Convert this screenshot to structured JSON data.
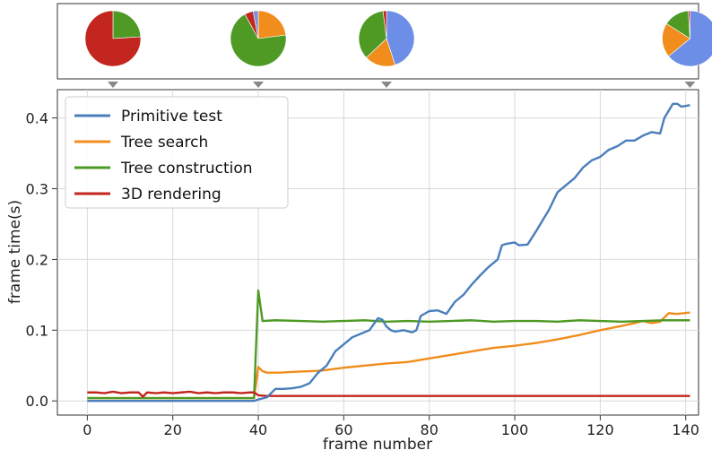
{
  "chart_data": {
    "type": "line",
    "xlabel": "frame number",
    "ylabel": "frame time(s)",
    "xlim": [
      -7,
      143
    ],
    "ylim": [
      -0.02,
      0.44
    ],
    "xticks": [
      0,
      20,
      40,
      60,
      80,
      100,
      120,
      140
    ],
    "yticks": [
      0.0,
      0.1,
      0.2,
      0.3,
      0.4
    ],
    "grid": true,
    "legend": {
      "location": "upper left"
    },
    "series": [
      {
        "name": "Primitive test",
        "color": "#4a7fbc",
        "points": [
          [
            0,
            0.0
          ],
          [
            39,
            0.0
          ],
          [
            40,
            0.002
          ],
          [
            42,
            0.005
          ],
          [
            44,
            0.017
          ],
          [
            46,
            0.017
          ],
          [
            48,
            0.018
          ],
          [
            50,
            0.02
          ],
          [
            52,
            0.025
          ],
          [
            54,
            0.04
          ],
          [
            56,
            0.05
          ],
          [
            58,
            0.07
          ],
          [
            60,
            0.08
          ],
          [
            62,
            0.09
          ],
          [
            64,
            0.095
          ],
          [
            66,
            0.1
          ],
          [
            68,
            0.117
          ],
          [
            69,
            0.115
          ],
          [
            70,
            0.105
          ],
          [
            71,
            0.1
          ],
          [
            72,
            0.098
          ],
          [
            74,
            0.1
          ],
          [
            76,
            0.097
          ],
          [
            77,
            0.1
          ],
          [
            78,
            0.12
          ],
          [
            80,
            0.127
          ],
          [
            82,
            0.128
          ],
          [
            84,
            0.123
          ],
          [
            86,
            0.14
          ],
          [
            88,
            0.15
          ],
          [
            90,
            0.165
          ],
          [
            92,
            0.178
          ],
          [
            94,
            0.19
          ],
          [
            96,
            0.2
          ],
          [
            97,
            0.22
          ],
          [
            98,
            0.222
          ],
          [
            100,
            0.224
          ],
          [
            101,
            0.22
          ],
          [
            103,
            0.221
          ],
          [
            105,
            0.24
          ],
          [
            107,
            0.26
          ],
          [
            108,
            0.27
          ],
          [
            110,
            0.295
          ],
          [
            111,
            0.3
          ],
          [
            112,
            0.305
          ],
          [
            114,
            0.315
          ],
          [
            116,
            0.33
          ],
          [
            118,
            0.34
          ],
          [
            120,
            0.345
          ],
          [
            122,
            0.355
          ],
          [
            124,
            0.36
          ],
          [
            126,
            0.368
          ],
          [
            128,
            0.368
          ],
          [
            130,
            0.375
          ],
          [
            132,
            0.38
          ],
          [
            134,
            0.378
          ],
          [
            135,
            0.4
          ],
          [
            137,
            0.42
          ],
          [
            138,
            0.42
          ],
          [
            139,
            0.416
          ],
          [
            141,
            0.418
          ]
        ]
      },
      {
        "name": "Tree search",
        "color": "#f08d1c",
        "points": [
          [
            0,
            0.004
          ],
          [
            39,
            0.004
          ],
          [
            40,
            0.048
          ],
          [
            41,
            0.042
          ],
          [
            42,
            0.04
          ],
          [
            45,
            0.04
          ],
          [
            48,
            0.041
          ],
          [
            52,
            0.042
          ],
          [
            55,
            0.043
          ],
          [
            60,
            0.047
          ],
          [
            65,
            0.05
          ],
          [
            70,
            0.053
          ],
          [
            75,
            0.055
          ],
          [
            80,
            0.06
          ],
          [
            85,
            0.065
          ],
          [
            90,
            0.07
          ],
          [
            95,
            0.075
          ],
          [
            100,
            0.078
          ],
          [
            105,
            0.082
          ],
          [
            110,
            0.087
          ],
          [
            115,
            0.093
          ],
          [
            120,
            0.1
          ],
          [
            125,
            0.106
          ],
          [
            128,
            0.11
          ],
          [
            130,
            0.113
          ],
          [
            132,
            0.11
          ],
          [
            134,
            0.112
          ],
          [
            136,
            0.124
          ],
          [
            138,
            0.123
          ],
          [
            141,
            0.125
          ]
        ]
      },
      {
        "name": "Tree construction",
        "color": "#4e9a24",
        "points": [
          [
            0,
            0.004
          ],
          [
            39,
            0.004
          ],
          [
            40,
            0.156
          ],
          [
            41,
            0.113
          ],
          [
            44,
            0.114
          ],
          [
            50,
            0.113
          ],
          [
            55,
            0.112
          ],
          [
            60,
            0.113
          ],
          [
            65,
            0.114
          ],
          [
            70,
            0.112
          ],
          [
            75,
            0.113
          ],
          [
            80,
            0.112
          ],
          [
            85,
            0.113
          ],
          [
            90,
            0.114
          ],
          [
            95,
            0.112
          ],
          [
            100,
            0.113
          ],
          [
            105,
            0.113
          ],
          [
            110,
            0.112
          ],
          [
            115,
            0.114
          ],
          [
            120,
            0.113
          ],
          [
            125,
            0.112
          ],
          [
            130,
            0.113
          ],
          [
            135,
            0.114
          ],
          [
            141,
            0.114
          ]
        ]
      },
      {
        "name": "3D rendering",
        "color": "#c3261f",
        "points": [
          [
            0,
            0.012
          ],
          [
            2,
            0.012
          ],
          [
            4,
            0.011
          ],
          [
            6,
            0.013
          ],
          [
            8,
            0.011
          ],
          [
            10,
            0.012
          ],
          [
            12,
            0.012
          ],
          [
            13,
            0.006
          ],
          [
            14,
            0.012
          ],
          [
            16,
            0.011
          ],
          [
            18,
            0.012
          ],
          [
            20,
            0.011
          ],
          [
            22,
            0.012
          ],
          [
            24,
            0.013
          ],
          [
            26,
            0.011
          ],
          [
            28,
            0.012
          ],
          [
            30,
            0.011
          ],
          [
            32,
            0.012
          ],
          [
            34,
            0.012
          ],
          [
            36,
            0.011
          ],
          [
            38,
            0.012
          ],
          [
            39,
            0.012
          ],
          [
            40,
            0.008
          ],
          [
            42,
            0.007
          ],
          [
            50,
            0.007
          ],
          [
            60,
            0.007
          ],
          [
            70,
            0.007
          ],
          [
            80,
            0.007
          ],
          [
            90,
            0.007
          ],
          [
            100,
            0.007
          ],
          [
            110,
            0.007
          ],
          [
            120,
            0.007
          ],
          [
            130,
            0.007
          ],
          [
            141,
            0.007
          ]
        ]
      }
    ],
    "pies": [
      {
        "frame": 6,
        "slices": [
          {
            "series": "Tree construction",
            "color": "#4e9a24",
            "value": 0.24
          },
          {
            "series": "3D rendering",
            "color": "#c3261f",
            "value": 0.76
          }
        ]
      },
      {
        "frame": 40,
        "slices": [
          {
            "series": "Tree search",
            "color": "#f08d1c",
            "value": 0.23
          },
          {
            "series": "Tree construction",
            "color": "#4e9a24",
            "value": 0.69
          },
          {
            "series": "3D rendering",
            "color": "#c3261f",
            "value": 0.05
          },
          {
            "series": "Primitive test",
            "color": "#7a90d8",
            "value": 0.03
          }
        ]
      },
      {
        "frame": 70,
        "slices": [
          {
            "series": "Primitive test",
            "color": "#6d8ee6",
            "value": 0.45
          },
          {
            "series": "Tree search",
            "color": "#f08d1c",
            "value": 0.18
          },
          {
            "series": "Tree construction",
            "color": "#4e9a24",
            "value": 0.35
          },
          {
            "series": "3D rendering",
            "color": "#c3261f",
            "value": 0.02
          }
        ]
      },
      {
        "frame": 141,
        "slices": [
          {
            "series": "Primitive test",
            "color": "#6d8ee6",
            "value": 0.64
          },
          {
            "series": "Tree search",
            "color": "#f08d1c",
            "value": 0.2
          },
          {
            "series": "Tree construction",
            "color": "#4e9a24",
            "value": 0.15
          },
          {
            "series": "3D rendering",
            "color": "#c3261f",
            "value": 0.01
          }
        ]
      }
    ]
  }
}
